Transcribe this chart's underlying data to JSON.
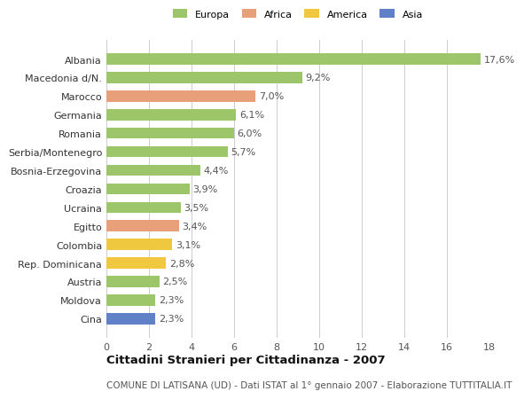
{
  "categories": [
    "Albania",
    "Macedonia d/N.",
    "Marocco",
    "Germania",
    "Romania",
    "Serbia/Montenegro",
    "Bosnia-Erzegovina",
    "Croazia",
    "Ucraina",
    "Egitto",
    "Colombia",
    "Rep. Dominicana",
    "Austria",
    "Moldova",
    "Cina"
  ],
  "values": [
    17.6,
    9.2,
    7.0,
    6.1,
    6.0,
    5.7,
    4.4,
    3.9,
    3.5,
    3.4,
    3.1,
    2.8,
    2.5,
    2.3,
    2.3
  ],
  "labels": [
    "17,6%",
    "9,2%",
    "7,0%",
    "6,1%",
    "6,0%",
    "5,7%",
    "4,4%",
    "3,9%",
    "3,5%",
    "3,4%",
    "3,1%",
    "2,8%",
    "2,5%",
    "2,3%",
    "2,3%"
  ],
  "continents": [
    "Europa",
    "Europa",
    "Africa",
    "Europa",
    "Europa",
    "Europa",
    "Europa",
    "Europa",
    "Europa",
    "Africa",
    "America",
    "America",
    "Europa",
    "Europa",
    "Asia"
  ],
  "colors": {
    "Europa": "#9dc569",
    "Africa": "#e8a07a",
    "America": "#f0c840",
    "Asia": "#6080c8"
  },
  "xlim": [
    0,
    18
  ],
  "xticks": [
    0,
    2,
    4,
    6,
    8,
    10,
    12,
    14,
    16,
    18
  ],
  "title": "Cittadini Stranieri per Cittadinanza - 2007",
  "subtitle": "COMUNE DI LATISANA (UD) - Dati ISTAT al 1° gennaio 2007 - Elaborazione TUTTITALIA.IT",
  "background_color": "#ffffff",
  "bar_height": 0.6,
  "grid_color": "#cccccc",
  "label_fontsize": 8,
  "tick_fontsize": 8,
  "title_fontsize": 9.5,
  "subtitle_fontsize": 7.5
}
